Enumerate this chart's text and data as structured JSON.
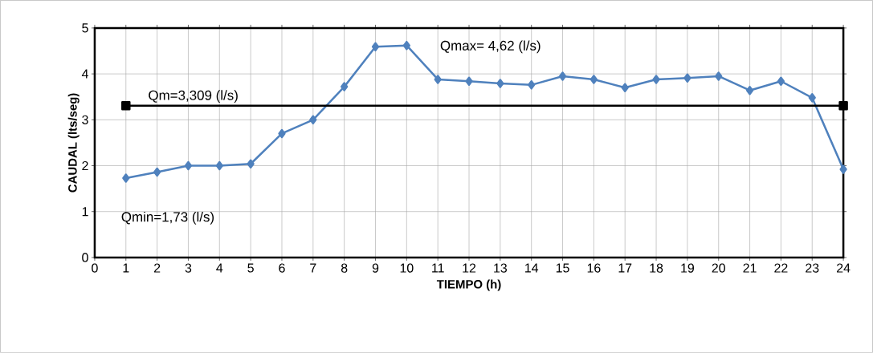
{
  "chart_data": {
    "type": "line",
    "xlabel": "TIEMPO (h)",
    "ylabel": "CAUDAL (lts/seg)",
    "x": [
      1,
      2,
      3,
      4,
      5,
      6,
      7,
      8,
      9,
      10,
      11,
      12,
      13,
      14,
      15,
      16,
      17,
      18,
      19,
      20,
      21,
      22,
      23,
      24
    ],
    "series": [
      {
        "color": "#4f81bd",
        "marker": "diamond",
        "values": [
          1.73,
          1.86,
          2.0,
          2.0,
          2.04,
          2.7,
          3.0,
          3.72,
          4.59,
          4.62,
          3.88,
          3.84,
          3.79,
          3.76,
          3.95,
          3.88,
          3.7,
          3.88,
          3.91,
          3.95,
          3.64,
          3.84,
          3.48,
          1.92
        ]
      },
      {
        "type": "line",
        "color": "#000000",
        "marker": "square",
        "x": [
          1,
          24
        ],
        "values": [
          3.309,
          3.309
        ]
      }
    ],
    "annotations": [
      "Qmax= 4,62 (l/s)",
      "Qm=3,309 (l/s)",
      "Qmin=1,73 (l/s)"
    ],
    "xlim": [
      0,
      24
    ],
    "ylim": [
      0,
      5
    ],
    "xticks": [
      0,
      1,
      2,
      3,
      4,
      5,
      6,
      7,
      8,
      9,
      10,
      11,
      12,
      13,
      14,
      15,
      16,
      17,
      18,
      19,
      20,
      21,
      22,
      23,
      24
    ],
    "yticks": [
      0,
      1,
      2,
      3,
      4,
      5
    ],
    "grid": true,
    "line_style": "solid"
  }
}
